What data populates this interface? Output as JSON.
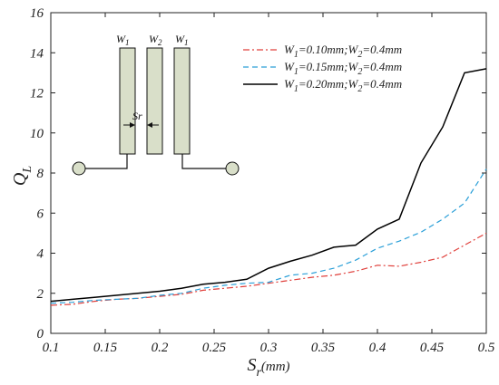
{
  "chart_data": {
    "type": "line",
    "title": "",
    "xlabel_main": "S",
    "xlabel_sub": "r",
    "xlabel_unit": "(mm)",
    "ylabel_main": "Q",
    "ylabel_sub": "L",
    "xlim": [
      0.1,
      0.5
    ],
    "ylim": [
      0,
      16
    ],
    "xticks": [
      "0.1",
      "0.15",
      "0.2",
      "0.25",
      "0.3",
      "0.35",
      "0.4",
      "0.45",
      "0.5"
    ],
    "xtick_values": [
      0.1,
      0.15,
      0.2,
      0.25,
      0.3,
      0.35,
      0.4,
      0.45,
      0.5
    ],
    "yticks": [
      "0",
      "2",
      "4",
      "6",
      "8",
      "10",
      "12",
      "14",
      "16"
    ],
    "ytick_values": [
      0,
      2,
      4,
      6,
      8,
      10,
      12,
      14,
      16
    ],
    "grid": false,
    "legend_position": "top-right",
    "x": [
      0.1,
      0.12,
      0.14,
      0.16,
      0.18,
      0.2,
      0.22,
      0.24,
      0.26,
      0.28,
      0.3,
      0.32,
      0.34,
      0.36,
      0.38,
      0.4,
      0.42,
      0.44,
      0.46,
      0.48,
      0.5
    ],
    "series": [
      {
        "name_parts": [
          "W",
          "1",
          "=0.10mm;W",
          "2",
          "=0.4mm"
        ],
        "color": "#e0403c",
        "dash": "dashdot",
        "values": [
          1.4,
          1.45,
          1.6,
          1.7,
          1.75,
          1.85,
          1.95,
          2.15,
          2.25,
          2.35,
          2.5,
          2.65,
          2.8,
          2.9,
          3.1,
          3.4,
          3.35,
          3.55,
          3.8,
          4.4,
          5.0
        ]
      },
      {
        "name_parts": [
          "W",
          "1",
          "=0.15mm;W",
          "2",
          "=0.4mm"
        ],
        "color": "#2a9fd8",
        "dash": "dashed",
        "values": [
          1.5,
          1.55,
          1.65,
          1.7,
          1.75,
          1.9,
          2.0,
          2.25,
          2.4,
          2.5,
          2.55,
          2.9,
          3.0,
          3.25,
          3.65,
          4.25,
          4.6,
          5.05,
          5.7,
          6.5,
          8.2
        ]
      },
      {
        "name_parts": [
          "W",
          "1",
          "=0.20mm;W",
          "2",
          "=0.4mm"
        ],
        "color": "#000000",
        "dash": "solid",
        "values": [
          1.6,
          1.7,
          1.8,
          1.9,
          2.0,
          2.1,
          2.25,
          2.45,
          2.55,
          2.7,
          3.25,
          3.6,
          3.9,
          4.3,
          4.4,
          5.2,
          5.7,
          8.5,
          10.3,
          13.0,
          13.2
        ]
      }
    ]
  },
  "schematic": {
    "label_w1_left": "W",
    "label_w1_left_sub": "1",
    "label_w2": "W",
    "label_w2_sub": "2",
    "label_w1_right": "W",
    "label_w1_right_sub": "1",
    "gap_label": "Sr",
    "strip_fill": "#d9dfc9"
  }
}
